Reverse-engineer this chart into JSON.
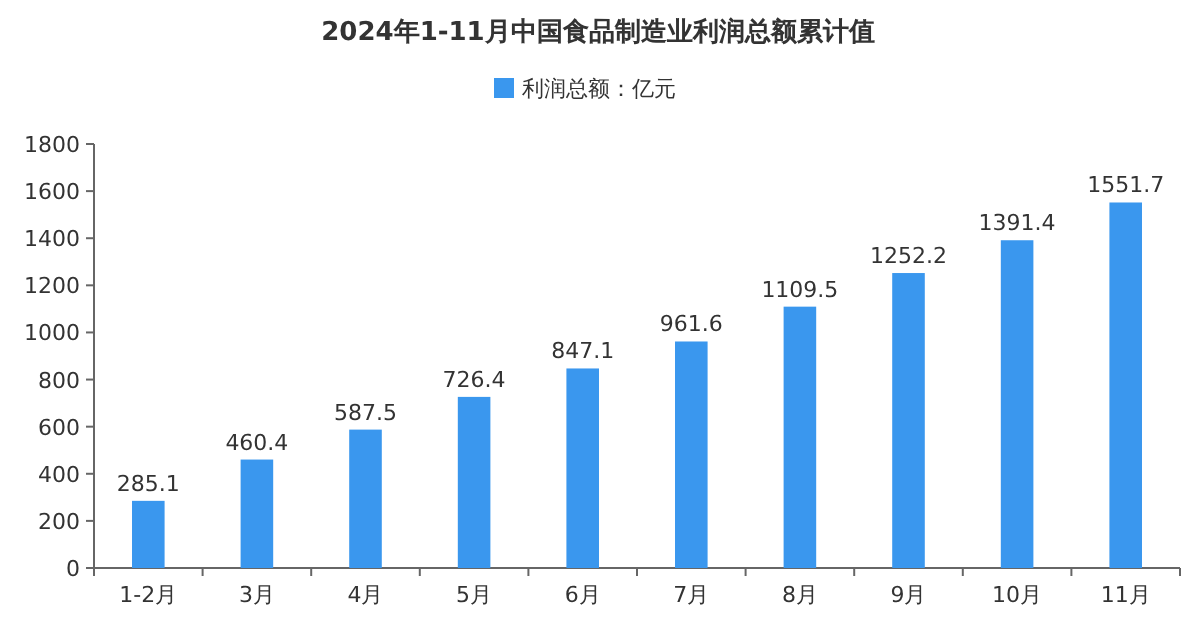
{
  "chart_data": {
    "type": "bar",
    "title": "2024年1-11月中国食品制造业利润总额累计值",
    "categories": [
      "1-2月",
      "3月",
      "4月",
      "5月",
      "6月",
      "7月",
      "8月",
      "9月",
      "10月",
      "11月"
    ],
    "series": [
      {
        "name": "利润总额：亿元",
        "color": "#3a97ee",
        "values": [
          285.1,
          460.4,
          587.5,
          726.4,
          847.1,
          961.6,
          1109.5,
          1252.2,
          1391.4,
          1551.7
        ]
      }
    ],
    "ylim": [
      0,
      1800
    ],
    "yticks": [
      0,
      200,
      400,
      600,
      800,
      1000,
      1200,
      1400,
      1600,
      1800
    ],
    "data_labels": true,
    "legend": "top"
  }
}
